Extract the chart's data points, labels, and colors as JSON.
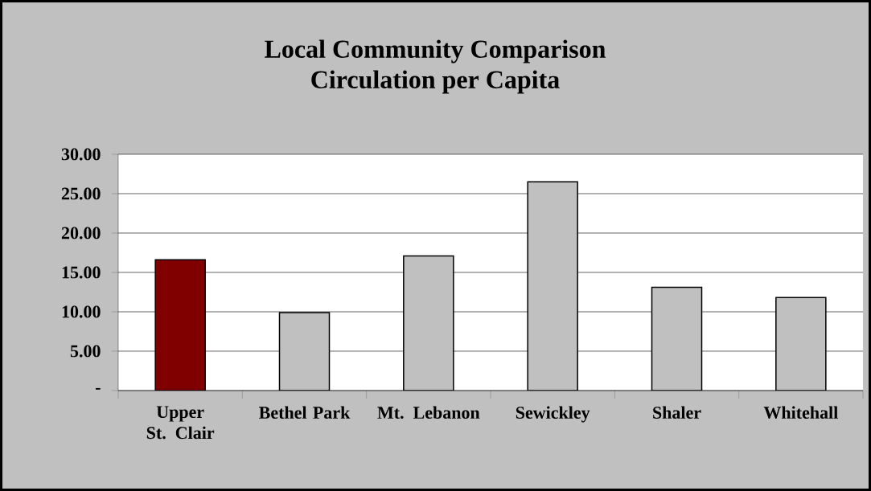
{
  "chart_data": {
    "type": "bar",
    "title": "Local Community Comparison",
    "subtitle": "Circulation per Capita",
    "categories": [
      "Upper St. Clair",
      "Bethel Park",
      "Mt. Lebanon",
      "Sewickley",
      "Shaler",
      "Whitehall"
    ],
    "values": [
      16.6,
      9.9,
      17.1,
      26.5,
      13.1,
      11.8
    ],
    "colors": [
      "#800000",
      "#c0c0c0",
      "#c0c0c0",
      "#c0c0c0",
      "#c0c0c0",
      "#c0c0c0"
    ],
    "ylim": [
      0,
      30
    ],
    "yticks": [
      {
        "value": 0,
        "label": "-"
      },
      {
        "value": 5,
        "label": "5.00"
      },
      {
        "value": 10,
        "label": "10.00"
      },
      {
        "value": 15,
        "label": "15.00"
      },
      {
        "value": 20,
        "label": "20.00"
      },
      {
        "value": 25,
        "label": "25.00"
      },
      {
        "value": 30,
        "label": "30.00"
      }
    ],
    "grid": "y"
  }
}
